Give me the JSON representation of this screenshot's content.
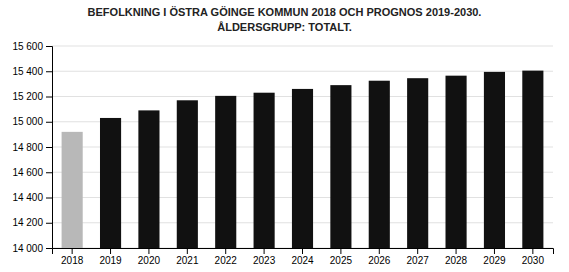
{
  "chart_data": {
    "type": "bar",
    "title": "BEFOLKNING I ÖSTRA GÖINGE KOMMUN 2018 OCH PROGNOS 2019-2030.",
    "subtitle": "ÅLDERSGRUPP: TOTALT.",
    "categories": [
      "2018",
      "2019",
      "2020",
      "2021",
      "2022",
      "2023",
      "2024",
      "2025",
      "2026",
      "2027",
      "2028",
      "2029",
      "2030"
    ],
    "values": [
      14920,
      15030,
      15090,
      15170,
      15205,
      15230,
      15260,
      15290,
      15325,
      15345,
      15365,
      15395,
      15405
    ],
    "colors": [
      "#b8b8b8",
      "#111111",
      "#111111",
      "#111111",
      "#111111",
      "#111111",
      "#111111",
      "#111111",
      "#111111",
      "#111111",
      "#111111",
      "#111111",
      "#111111"
    ],
    "ylim": [
      14000,
      15600
    ],
    "yticks": [
      {
        "value": 14000,
        "label": "14 000"
      },
      {
        "value": 14200,
        "label": "14 200"
      },
      {
        "value": 14400,
        "label": "14 400"
      },
      {
        "value": 14600,
        "label": "14 600"
      },
      {
        "value": 14800,
        "label": "14 800"
      },
      {
        "value": 15000,
        "label": "15 000"
      },
      {
        "value": 15200,
        "label": "15 200"
      },
      {
        "value": 15400,
        "label": "15 400"
      },
      {
        "value": 15600,
        "label": "15 600"
      }
    ],
    "grid": true
  }
}
